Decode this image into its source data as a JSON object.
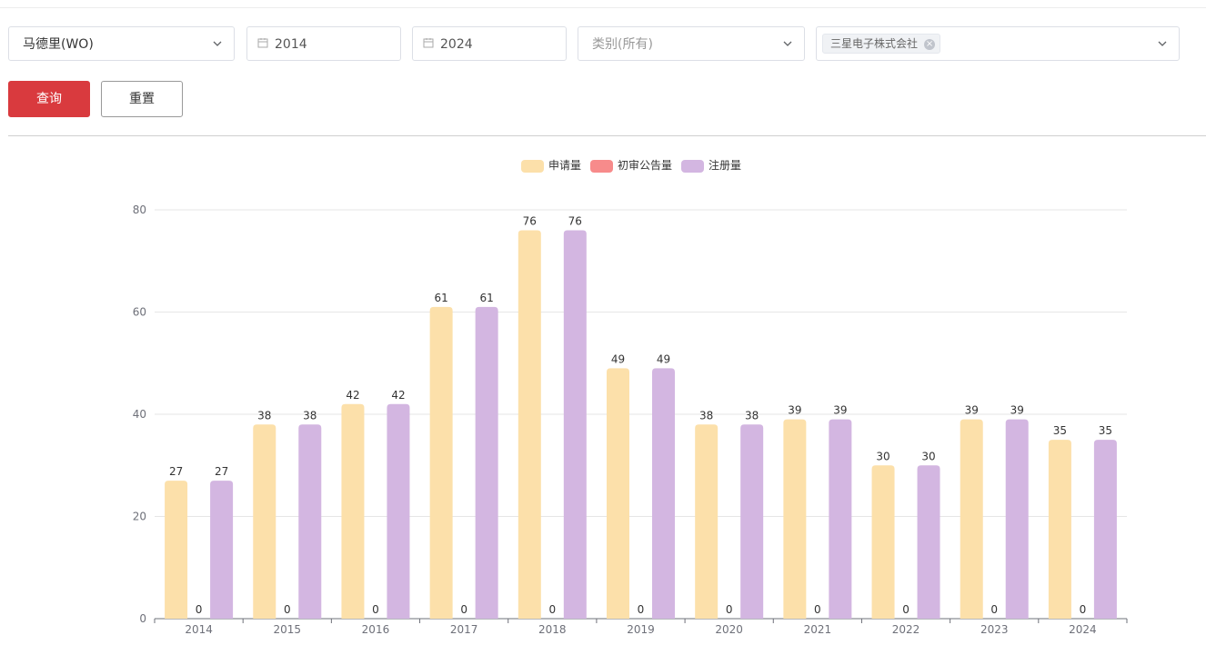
{
  "filters": {
    "office": {
      "value": "马德里(WO)",
      "icon": "chevron-down-icon"
    },
    "start_year": {
      "value": "2014",
      "icon": "calendar-icon"
    },
    "end_year": {
      "value": "2024",
      "icon": "calendar-icon"
    },
    "category": {
      "placeholder": "类别(所有)",
      "icon": "chevron-down-icon"
    },
    "applicant": {
      "tags": [
        "三星电子株式会社"
      ],
      "icon": "chevron-down-icon"
    }
  },
  "buttons": {
    "query": "查询",
    "reset": "重置"
  },
  "colors": {
    "primary": "#d93a3e",
    "application": "#fce0aa",
    "preliminary": "#f78b8b",
    "registration": "#d3b6e1"
  },
  "chart_data": {
    "type": "bar",
    "categories": [
      "2014",
      "2015",
      "2016",
      "2017",
      "2018",
      "2019",
      "2020",
      "2021",
      "2022",
      "2023",
      "2024"
    ],
    "series": [
      {
        "name": "申请量",
        "color": "#fce0aa",
        "values": [
          27,
          38,
          42,
          61,
          76,
          49,
          38,
          39,
          30,
          39,
          35
        ]
      },
      {
        "name": "初审公告量",
        "color": "#f78b8b",
        "values": [
          0,
          0,
          0,
          0,
          0,
          0,
          0,
          0,
          0,
          0,
          0
        ]
      },
      {
        "name": "注册量",
        "color": "#d3b6e1",
        "values": [
          27,
          38,
          42,
          61,
          76,
          49,
          38,
          39,
          30,
          39,
          35
        ]
      }
    ],
    "ylim": [
      0,
      80
    ],
    "yticks": [
      0,
      20,
      40,
      60,
      80
    ],
    "grid": true,
    "legend": "top-center",
    "data_labels": true
  }
}
